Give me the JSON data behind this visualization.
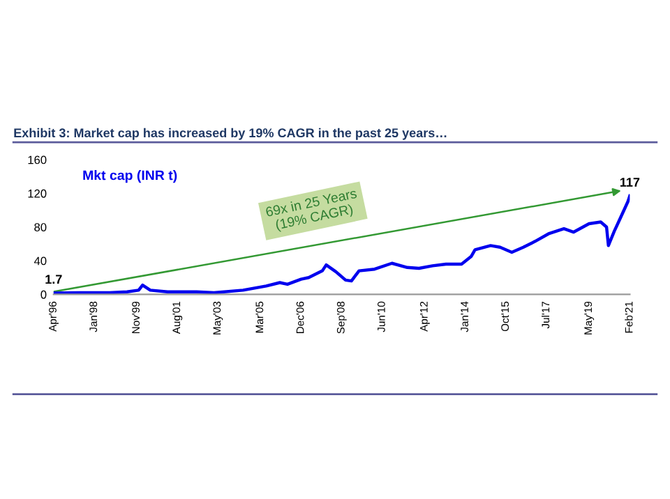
{
  "chart_data": {
    "type": "line",
    "title": "Exhibit 3: Market cap has increased by 19% CAGR in the past 25 years…",
    "annotations": [
      "69x in 25 Years\n(19% CAGR)"
    ],
    "series": [
      {
        "name": "Mkt cap (INR t)",
        "color": "#0000ee",
        "x": [
          "1996-04",
          "1997-06",
          "1998-09",
          "1999-06",
          "1999-12",
          "2000-02",
          "2000-06",
          "2001-03",
          "2002-06",
          "2003-03",
          "2004-06",
          "2005-06",
          "2006-01",
          "2006-05",
          "2006-12",
          "2007-04",
          "2007-11",
          "2008-01",
          "2008-06",
          "2008-11",
          "2009-02",
          "2009-06",
          "2010-02",
          "2010-11",
          "2011-07",
          "2012-01",
          "2012-08",
          "2013-03",
          "2013-11",
          "2014-04",
          "2014-06",
          "2015-02",
          "2015-07",
          "2016-01",
          "2016-07",
          "2017-01",
          "2017-08",
          "2018-04",
          "2018-09",
          "2019-05",
          "2019-11",
          "2020-02",
          "2020-03",
          "2020-06",
          "2020-09",
          "2021-01",
          "2021-02"
        ],
        "values": [
          1.7,
          2,
          2,
          3,
          5,
          11,
          5,
          3,
          3,
          2,
          5,
          10,
          14,
          12,
          18,
          20,
          28,
          35,
          27,
          17,
          16,
          28,
          30,
          37,
          32,
          31,
          34,
          36,
          36,
          45,
          53,
          58,
          56,
          50,
          56,
          63,
          72,
          78,
          74,
          84,
          86,
          80,
          58,
          75,
          90,
          110,
          117
        ],
        "value_labels": [
          "1.7",
          null,
          null,
          null,
          null,
          null,
          null,
          null,
          null,
          null,
          null,
          null,
          null,
          null,
          null,
          null,
          null,
          null,
          null,
          null,
          null,
          null,
          null,
          null,
          null,
          null,
          null,
          null,
          null,
          null,
          null,
          null,
          null,
          null,
          null,
          null,
          null,
          null,
          null,
          null,
          null,
          null,
          null,
          null,
          null,
          null,
          "117"
        ]
      }
    ],
    "xlim": [
      "1996-04",
      "2021-02"
    ],
    "xticks": [
      {
        "value": "1996-04",
        "label": "Apr'96"
      },
      {
        "value": "1998-01",
        "label": "Jan'98"
      },
      {
        "value": "1999-11",
        "label": "Nov'99"
      },
      {
        "value": "2001-08",
        "label": "Aug'01"
      },
      {
        "value": "2003-05",
        "label": "May'03"
      },
      {
        "value": "2005-03",
        "label": "Mar'05"
      },
      {
        "value": "2006-12",
        "label": "Dec'06"
      },
      {
        "value": "2008-09",
        "label": "Sep'08"
      },
      {
        "value": "2010-06",
        "label": "Jun'10"
      },
      {
        "value": "2012-04",
        "label": "Apr'12"
      },
      {
        "value": "2014-01",
        "label": "Jan'14"
      },
      {
        "value": "2015-10",
        "label": "Oct'15"
      },
      {
        "value": "2017-07",
        "label": "Jul'17"
      },
      {
        "value": "2019-05",
        "label": "May'19"
      },
      {
        "value": "2021-02",
        "label": "Feb'21"
      }
    ],
    "ylim": [
      0,
      160
    ],
    "yticks": [
      0,
      40,
      80,
      120,
      160
    ],
    "grid": false,
    "legend": false
  }
}
